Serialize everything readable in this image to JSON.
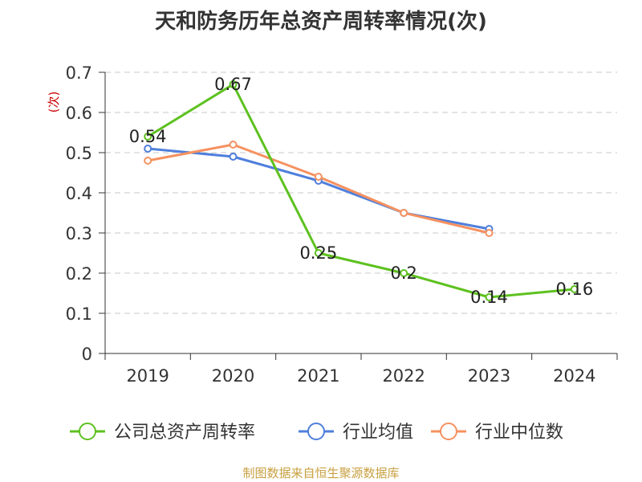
{
  "chart_data": {
    "type": "line",
    "title": "天和防务历年总资产周转率情况(次)",
    "ylabel": "(次)",
    "xlabel": "",
    "categories": [
      "2019",
      "2020",
      "2021",
      "2022",
      "2023",
      "2024"
    ],
    "ylim": [
      0,
      0.7
    ],
    "yticks": [
      "0",
      "0.1",
      "0.2",
      "0.3",
      "0.4",
      "0.5",
      "0.6",
      "0.7"
    ],
    "grid": true,
    "legend_position": "bottom",
    "series": [
      {
        "name": "公司总资产周转率",
        "color": "#5dc11f",
        "values": [
          0.54,
          0.67,
          0.25,
          0.2,
          0.14,
          0.16
        ],
        "labels": [
          "0.54",
          "0.67",
          "0.25",
          "0.2",
          "0.14",
          "0.16"
        ]
      },
      {
        "name": "行业均值",
        "color": "#4f7fdc",
        "values": [
          0.51,
          0.49,
          0.43,
          0.35,
          0.31,
          null
        ]
      },
      {
        "name": "行业中位数",
        "color": "#f59160",
        "values": [
          0.48,
          0.52,
          0.44,
          0.35,
          0.3,
          null
        ]
      }
    ]
  },
  "source": "制图数据来自恒生聚源数据库"
}
